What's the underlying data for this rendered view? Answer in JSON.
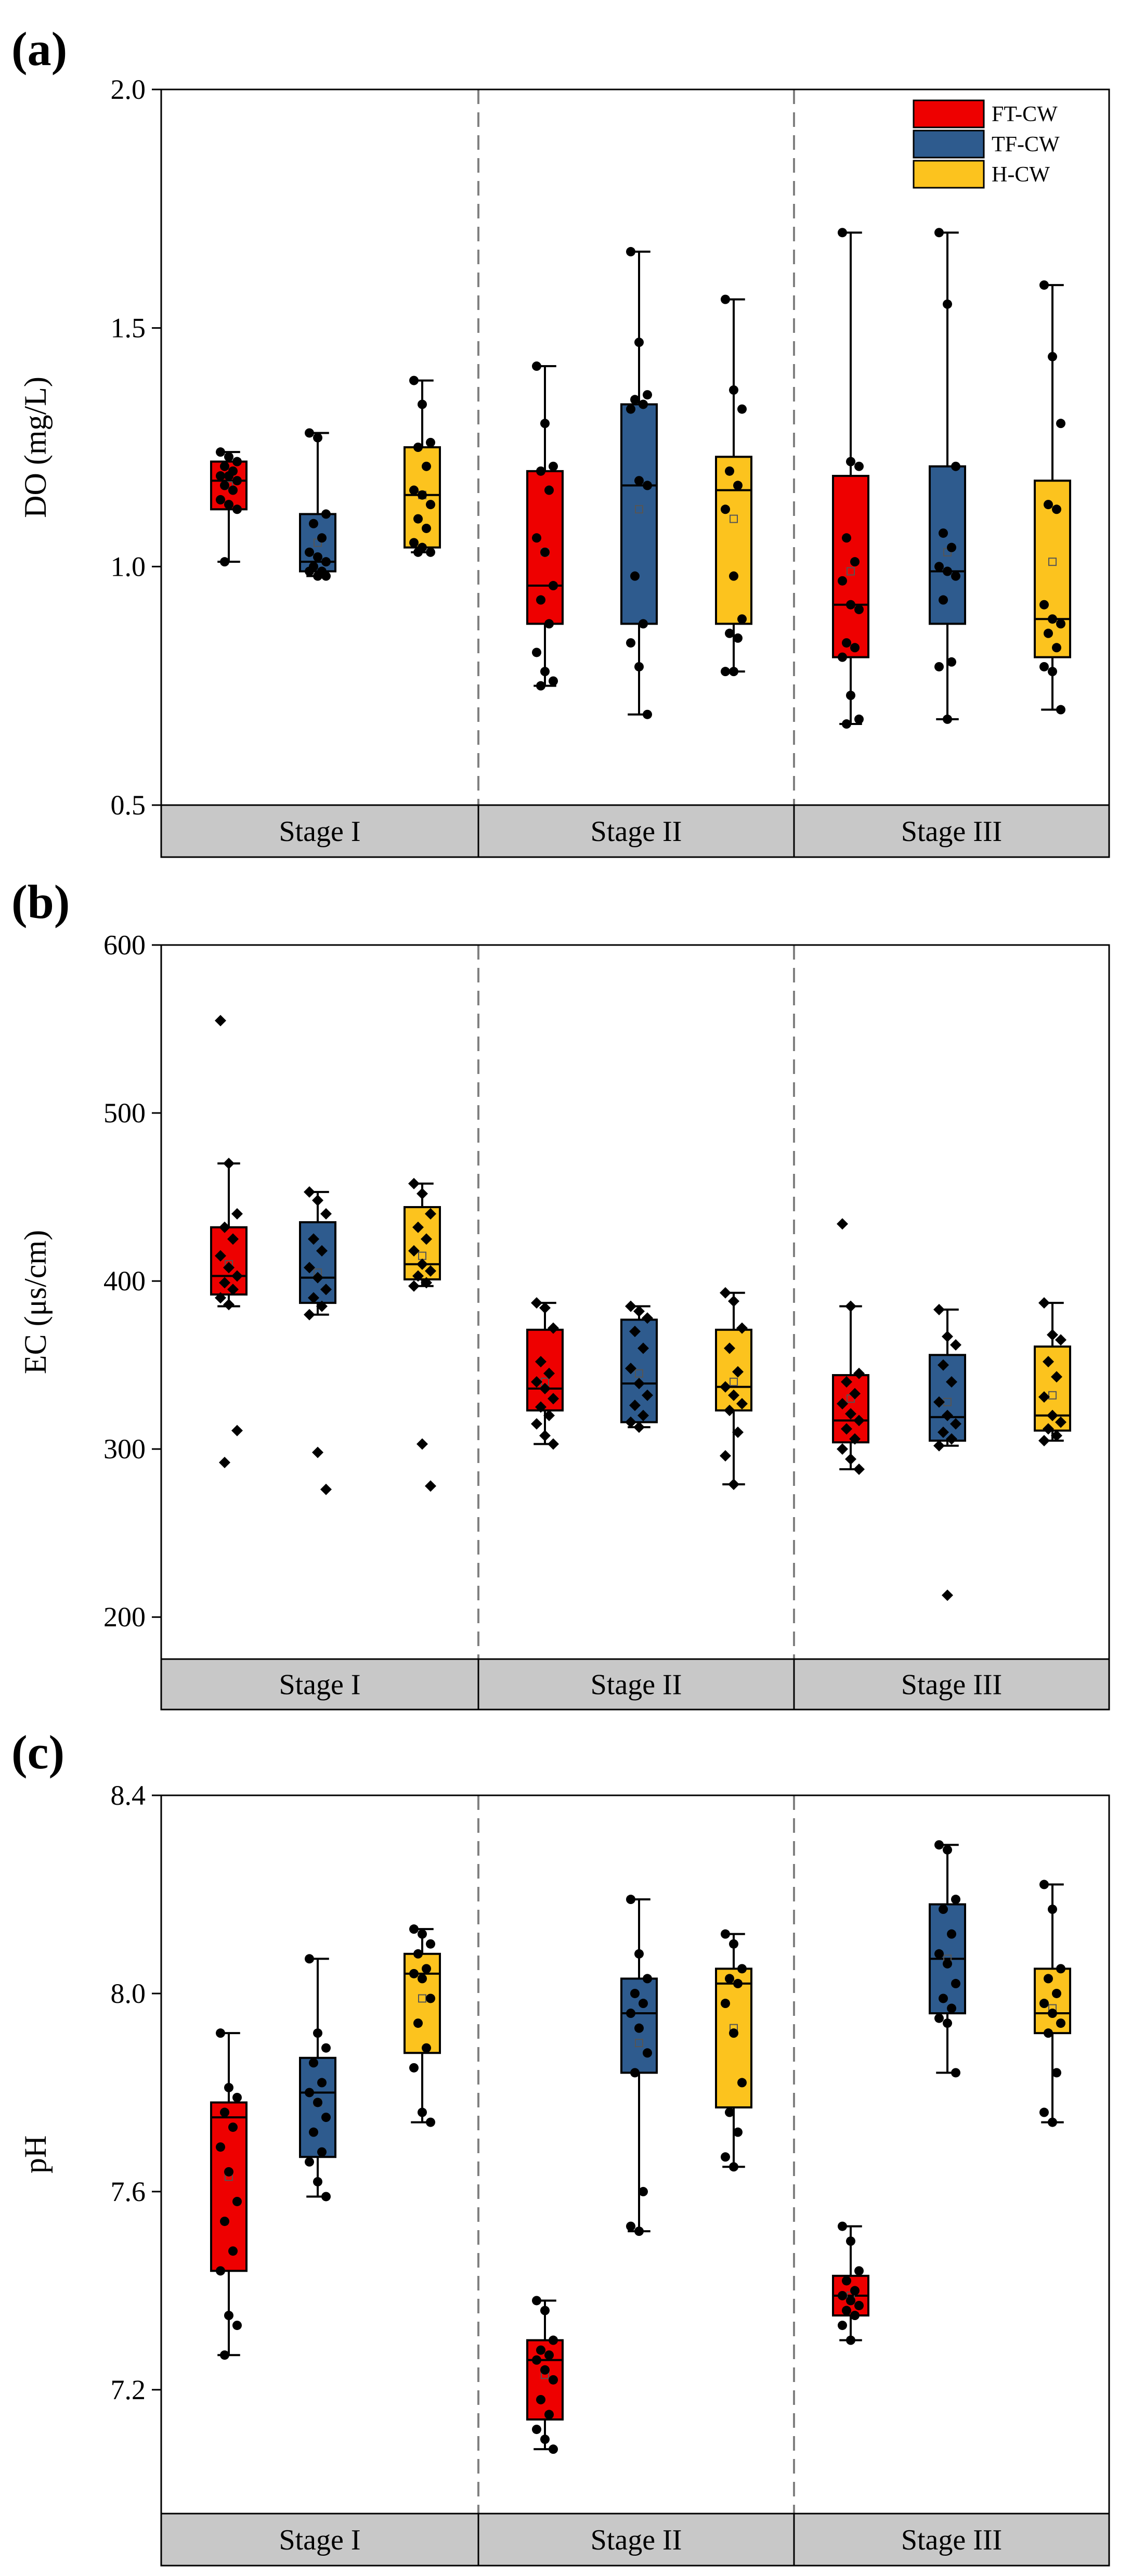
{
  "chart_data": [
    {
      "type": "box",
      "panel_label": "(a)",
      "ylabel": "DO (mg/L)",
      "ylim": [
        0.5,
        2.0
      ],
      "yticks": [
        "0.5",
        "1.0",
        "1.5",
        "2.0"
      ],
      "ytick_values": [
        0.5,
        1.0,
        1.5,
        2.0
      ],
      "point_marker": "circle",
      "stages": [
        "Stage I",
        "Stage II",
        "Stage III"
      ],
      "legend": [
        {
          "name": "FT-CW",
          "color": "#ee0000"
        },
        {
          "name": "TF-CW",
          "color": "#2e5b8e"
        },
        {
          "name": "H-CW",
          "color": "#fcc31e"
        }
      ],
      "boxes": [
        {
          "stage": "Stage I",
          "series": "FT-CW",
          "min": 1.01,
          "q1": 1.12,
          "median": 1.18,
          "q3": 1.22,
          "max": 1.24,
          "mean": 1.17,
          "points": [
            1.24,
            1.23,
            1.22,
            1.21,
            1.2,
            1.19,
            1.19,
            1.18,
            1.17,
            1.16,
            1.14,
            1.13,
            1.12,
            1.01
          ]
        },
        {
          "stage": "Stage I",
          "series": "TF-CW",
          "min": 0.98,
          "q1": 0.99,
          "median": 1.01,
          "q3": 1.11,
          "max": 1.28,
          "mean": 1.05,
          "points": [
            1.28,
            1.27,
            1.11,
            1.09,
            1.06,
            1.03,
            1.02,
            1.01,
            1.0,
            0.99,
            0.99,
            0.98,
            0.98
          ]
        },
        {
          "stage": "Stage I",
          "series": "H-CW",
          "min": 1.03,
          "q1": 1.04,
          "median": 1.15,
          "q3": 1.25,
          "max": 1.39,
          "mean": 1.15,
          "points": [
            1.39,
            1.34,
            1.26,
            1.25,
            1.21,
            1.16,
            1.15,
            1.13,
            1.1,
            1.08,
            1.05,
            1.04,
            1.03,
            1.03
          ]
        },
        {
          "stage": "Stage II",
          "series": "FT-CW",
          "min": 0.75,
          "q1": 0.88,
          "median": 0.96,
          "q3": 1.2,
          "max": 1.42,
          "mean": 1.03,
          "points": [
            1.42,
            1.3,
            1.21,
            1.2,
            1.16,
            1.06,
            1.03,
            0.96,
            0.93,
            0.88,
            0.82,
            0.78,
            0.76,
            0.75
          ]
        },
        {
          "stage": "Stage II",
          "series": "TF-CW",
          "min": 0.69,
          "q1": 0.88,
          "median": 1.17,
          "q3": 1.34,
          "max": 1.66,
          "mean": 1.12,
          "points": [
            1.66,
            1.47,
            1.36,
            1.35,
            1.34,
            1.33,
            1.18,
            1.17,
            0.98,
            0.88,
            0.84,
            0.79,
            0.69
          ]
        },
        {
          "stage": "Stage II",
          "series": "H-CW",
          "min": 0.78,
          "q1": 0.88,
          "median": 1.16,
          "q3": 1.23,
          "max": 1.56,
          "mean": 1.1,
          "points": [
            1.56,
            1.37,
            1.33,
            1.2,
            1.17,
            1.12,
            0.98,
            0.89,
            0.86,
            0.85,
            0.78,
            0.78
          ]
        },
        {
          "stage": "Stage III",
          "series": "FT-CW",
          "min": 0.67,
          "q1": 0.81,
          "median": 0.92,
          "q3": 1.19,
          "max": 1.7,
          "mean": 0.99,
          "points": [
            1.7,
            1.22,
            1.21,
            1.06,
            1.01,
            0.97,
            0.92,
            0.91,
            0.84,
            0.83,
            0.81,
            0.73,
            0.68,
            0.67
          ]
        },
        {
          "stage": "Stage III",
          "series": "TF-CW",
          "min": 0.68,
          "q1": 0.88,
          "median": 0.99,
          "q3": 1.21,
          "max": 1.7,
          "mean": 1.03,
          "points": [
            1.7,
            1.55,
            1.21,
            1.07,
            1.04,
            1.0,
            0.99,
            0.98,
            0.93,
            0.8,
            0.79,
            0.68
          ]
        },
        {
          "stage": "Stage III",
          "series": "H-CW",
          "min": 0.7,
          "q1": 0.81,
          "median": 0.89,
          "q3": 1.18,
          "max": 1.59,
          "mean": 1.01,
          "points": [
            1.59,
            1.44,
            1.3,
            1.13,
            1.12,
            0.92,
            0.89,
            0.88,
            0.86,
            0.83,
            0.79,
            0.78,
            0.7
          ]
        }
      ]
    },
    {
      "type": "box",
      "panel_label": "(b)",
      "ylabel": "EC (μs/cm)",
      "ylim": [
        175,
        600
      ],
      "yticks": [
        "200",
        "300",
        "400",
        "500",
        "600"
      ],
      "ytick_values": [
        200,
        300,
        400,
        500,
        600
      ],
      "point_marker": "diamond",
      "stages": [
        "Stage I",
        "Stage II",
        "Stage III"
      ],
      "boxes": [
        {
          "stage": "Stage I",
          "series": "FT-CW",
          "min": 385,
          "q1": 392,
          "median": 403,
          "q3": 432,
          "max": 470,
          "mean": 410,
          "points": [
            555,
            470,
            440,
            432,
            425,
            415,
            408,
            403,
            399,
            395,
            390,
            386,
            311,
            292
          ]
        },
        {
          "stage": "Stage I",
          "series": "TF-CW",
          "min": 380,
          "q1": 387,
          "median": 402,
          "q3": 435,
          "max": 453,
          "mean": 405,
          "points": [
            453,
            448,
            440,
            425,
            418,
            408,
            402,
            395,
            390,
            385,
            380,
            298,
            276
          ]
        },
        {
          "stage": "Stage I",
          "series": "H-CW",
          "min": 397,
          "q1": 401,
          "median": 410,
          "q3": 444,
          "max": 458,
          "mean": 415,
          "points": [
            458,
            452,
            440,
            432,
            425,
            418,
            410,
            406,
            403,
            399,
            397,
            303,
            278
          ]
        },
        {
          "stage": "Stage II",
          "series": "FT-CW",
          "min": 303,
          "q1": 323,
          "median": 336,
          "q3": 371,
          "max": 387,
          "mean": 340,
          "points": [
            387,
            384,
            372,
            352,
            345,
            340,
            336,
            330,
            325,
            320,
            315,
            308,
            303
          ]
        },
        {
          "stage": "Stage II",
          "series": "TF-CW",
          "min": 313,
          "q1": 316,
          "median": 339,
          "q3": 377,
          "max": 385,
          "mean": 345,
          "points": [
            385,
            382,
            378,
            370,
            360,
            348,
            339,
            332,
            326,
            320,
            316,
            313
          ]
        },
        {
          "stage": "Stage II",
          "series": "H-CW",
          "min": 279,
          "q1": 323,
          "median": 337,
          "q3": 371,
          "max": 393,
          "mean": 340,
          "points": [
            393,
            388,
            372,
            360,
            346,
            337,
            332,
            327,
            323,
            310,
            296,
            279
          ]
        },
        {
          "stage": "Stage III",
          "series": "FT-CW",
          "min": 288,
          "q1": 304,
          "median": 317,
          "q3": 344,
          "max": 385,
          "mean": 330,
          "points": [
            434,
            385,
            345,
            340,
            333,
            327,
            321,
            317,
            312,
            306,
            300,
            294,
            288
          ]
        },
        {
          "stage": "Stage III",
          "series": "TF-CW",
          "min": 302,
          "q1": 305,
          "median": 319,
          "q3": 356,
          "max": 383,
          "mean": 328,
          "points": [
            383,
            367,
            362,
            350,
            340,
            328,
            320,
            315,
            310,
            306,
            302,
            213
          ]
        },
        {
          "stage": "Stage III",
          "series": "H-CW",
          "min": 305,
          "q1": 311,
          "median": 320,
          "q3": 361,
          "max": 387,
          "mean": 332,
          "points": [
            387,
            368,
            365,
            352,
            343,
            331,
            320,
            316,
            312,
            308,
            305
          ]
        }
      ]
    },
    {
      "type": "box",
      "panel_label": "(c)",
      "ylabel": "pH",
      "ylim": [
        6.95,
        8.4
      ],
      "yticks": [
        "7.2",
        "7.6",
        "8.0",
        "8.4"
      ],
      "ytick_values": [
        7.2,
        7.6,
        8.0,
        8.4
      ],
      "point_marker": "circle",
      "stages": [
        "Stage I",
        "Stage II",
        "Stage III"
      ],
      "boxes": [
        {
          "stage": "Stage I",
          "series": "FT-CW",
          "min": 7.27,
          "q1": 7.44,
          "median": 7.75,
          "q3": 7.78,
          "max": 7.92,
          "mean": 7.63,
          "points": [
            7.92,
            7.81,
            7.79,
            7.76,
            7.73,
            7.69,
            7.64,
            7.58,
            7.54,
            7.48,
            7.44,
            7.35,
            7.33,
            7.27
          ]
        },
        {
          "stage": "Stage I",
          "series": "TF-CW",
          "min": 7.59,
          "q1": 7.67,
          "median": 7.8,
          "q3": 7.87,
          "max": 8.07,
          "mean": 7.78,
          "points": [
            8.07,
            7.92,
            7.89,
            7.86,
            7.82,
            7.8,
            7.78,
            7.75,
            7.72,
            7.68,
            7.66,
            7.62,
            7.59
          ]
        },
        {
          "stage": "Stage I",
          "series": "H-CW",
          "min": 7.74,
          "q1": 7.88,
          "median": 8.04,
          "q3": 8.08,
          "max": 8.13,
          "mean": 7.99,
          "points": [
            8.13,
            8.12,
            8.1,
            8.08,
            8.05,
            8.04,
            8.03,
            7.99,
            7.94,
            7.89,
            7.85,
            7.76,
            7.74
          ]
        },
        {
          "stage": "Stage II",
          "series": "FT-CW",
          "min": 7.08,
          "q1": 7.14,
          "median": 7.26,
          "q3": 7.3,
          "max": 7.38,
          "mean": 7.23,
          "points": [
            7.38,
            7.36,
            7.3,
            7.28,
            7.27,
            7.26,
            7.24,
            7.22,
            7.18,
            7.15,
            7.12,
            7.1,
            7.08
          ]
        },
        {
          "stage": "Stage II",
          "series": "TF-CW",
          "min": 7.52,
          "q1": 7.84,
          "median": 7.96,
          "q3": 8.03,
          "max": 8.19,
          "mean": 7.9,
          "points": [
            8.19,
            8.08,
            8.03,
            8.0,
            7.98,
            7.96,
            7.93,
            7.88,
            7.84,
            7.6,
            7.53,
            7.52
          ]
        },
        {
          "stage": "Stage II",
          "series": "H-CW",
          "min": 7.65,
          "q1": 7.77,
          "median": 8.02,
          "q3": 8.05,
          "max": 8.12,
          "mean": 7.93,
          "points": [
            8.12,
            8.1,
            8.05,
            8.03,
            8.02,
            7.98,
            7.92,
            7.82,
            7.76,
            7.72,
            7.67,
            7.65
          ]
        },
        {
          "stage": "Stage III",
          "series": "FT-CW",
          "min": 7.3,
          "q1": 7.35,
          "median": 7.39,
          "q3": 7.43,
          "max": 7.53,
          "mean": 7.39,
          "points": [
            7.53,
            7.5,
            7.44,
            7.42,
            7.4,
            7.39,
            7.38,
            7.37,
            7.36,
            7.35,
            7.33,
            7.3
          ]
        },
        {
          "stage": "Stage III",
          "series": "TF-CW",
          "min": 7.84,
          "q1": 7.96,
          "median": 8.07,
          "q3": 8.18,
          "max": 8.3,
          "mean": 8.07,
          "points": [
            8.3,
            8.29,
            8.19,
            8.17,
            8.12,
            8.08,
            8.06,
            8.02,
            7.99,
            7.97,
            7.95,
            7.94,
            7.84
          ]
        },
        {
          "stage": "Stage III",
          "series": "H-CW",
          "min": 7.74,
          "q1": 7.92,
          "median": 7.96,
          "q3": 8.05,
          "max": 8.22,
          "mean": 7.97,
          "points": [
            8.22,
            8.17,
            8.05,
            8.03,
            8.0,
            7.98,
            7.96,
            7.94,
            7.92,
            7.84,
            7.76,
            7.74
          ]
        }
      ]
    }
  ]
}
